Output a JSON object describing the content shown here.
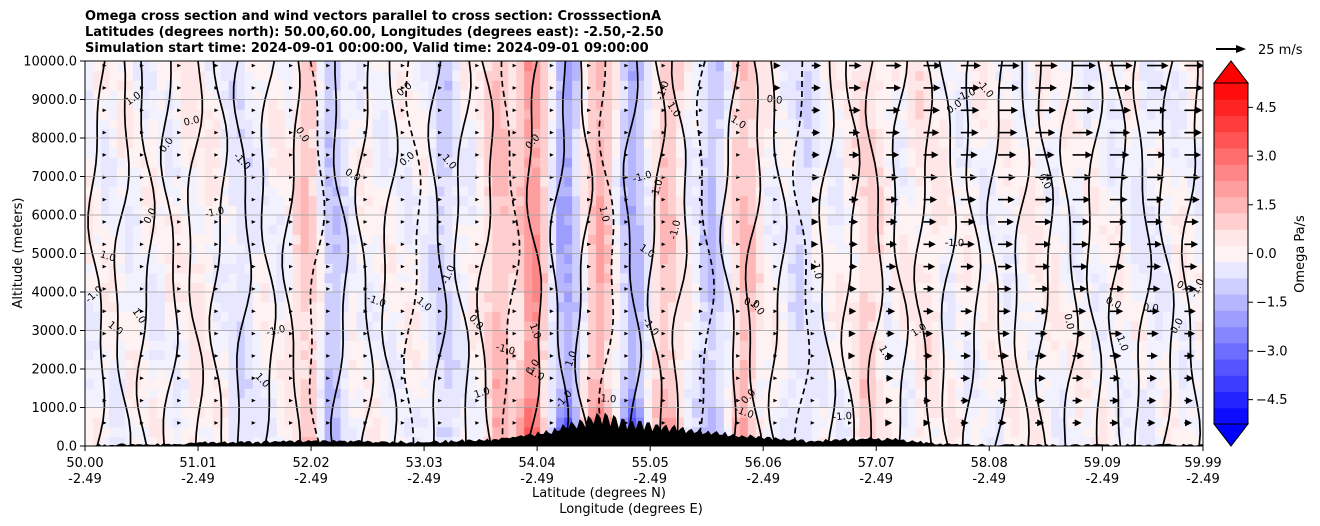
{
  "chart_data": {
    "type": "heatmap",
    "title_lines": [
      "Omega cross section and wind vectors parallel to cross section: CrosssectionA",
      "Latitudes (degrees north): 50.00,60.00, Longitudes (degrees east): -2.50,-2.50",
      "Simulation start time: 2024-09-01 00:00:00, Valid time: 2024-09-01 09:00:00"
    ],
    "xlabel_line1": "Latitude (degrees N)",
    "xlabel_line2": "Longitude (degrees E)",
    "ylabel": "Altitude (meters)",
    "x_range": [
      50.0,
      59.99
    ],
    "y_range": [
      0,
      10000
    ],
    "x_ticks": [
      {
        "lat": 50.0,
        "lat_label": "50.00",
        "lon_label": "-2.49"
      },
      {
        "lat": 51.01,
        "lat_label": "51.01",
        "lon_label": "-2.49"
      },
      {
        "lat": 52.02,
        "lat_label": "52.02",
        "lon_label": "-2.49"
      },
      {
        "lat": 53.03,
        "lat_label": "53.03",
        "lon_label": "-2.49"
      },
      {
        "lat": 54.04,
        "lat_label": "54.04",
        "lon_label": "-2.49"
      },
      {
        "lat": 55.05,
        "lat_label": "55.05",
        "lon_label": "-2.49"
      },
      {
        "lat": 56.06,
        "lat_label": "56.06",
        "lon_label": "-2.49"
      },
      {
        "lat": 57.07,
        "lat_label": "57.07",
        "lon_label": "-2.49"
      },
      {
        "lat": 58.08,
        "lat_label": "58.08",
        "lon_label": "-2.49"
      },
      {
        "lat": 59.09,
        "lat_label": "59.09",
        "lon_label": "-2.49"
      },
      {
        "lat": 59.99,
        "lat_label": "59.99",
        "lon_label": "-2.49"
      }
    ],
    "y_ticks": [
      {
        "value": 0,
        "label": "0.0"
      },
      {
        "value": 1000,
        "label": "1000.0"
      },
      {
        "value": 2000,
        "label": "2000.0"
      },
      {
        "value": 3000,
        "label": "3000.0"
      },
      {
        "value": 4000,
        "label": "4000.0"
      },
      {
        "value": 5000,
        "label": "5000.0"
      },
      {
        "value": 6000,
        "label": "6000.0"
      },
      {
        "value": 7000,
        "label": "7000.0"
      },
      {
        "value": 8000,
        "label": "8000.0"
      },
      {
        "value": 9000,
        "label": "9000.0"
      },
      {
        "value": 10000,
        "label": "10000.0"
      }
    ],
    "grid": "horizontal",
    "colorbar": {
      "label": "Omega Pa/s",
      "range": [
        -5.25,
        5.25
      ],
      "levels_step": 0.5,
      "ticks": [
        {
          "value": 4.5,
          "label": "4.5"
        },
        {
          "value": 3.0,
          "label": "3.0"
        },
        {
          "value": 1.5,
          "label": "1.5"
        },
        {
          "value": 0.0,
          "label": "0.0"
        },
        {
          "value": -1.5,
          "label": "−1.5"
        },
        {
          "value": -3.0,
          "label": "−3.0"
        },
        {
          "value": -4.5,
          "label": "−4.5"
        }
      ],
      "extend": "both",
      "color_positive": "#ff0000",
      "color_negative": "#0000ff"
    },
    "vector_key": {
      "label": "25 m/s",
      "speed": 25
    },
    "contour_levels": [
      -1.0,
      0.0,
      1.0
    ],
    "contour_labels": [
      "0.0",
      "-1.0",
      "1.0"
    ],
    "omega_bands": [
      {
        "lat": 51.0,
        "value": 0.3
      },
      {
        "lat": 51.4,
        "value": -0.6
      },
      {
        "lat": 52.0,
        "value": 1.2
      },
      {
        "lat": 52.2,
        "value": -1.3
      },
      {
        "lat": 53.2,
        "value": -0.9
      },
      {
        "lat": 53.7,
        "value": 1.4
      },
      {
        "lat": 54.0,
        "value": 2.2
      },
      {
        "lat": 54.3,
        "value": -1.8
      },
      {
        "lat": 54.6,
        "value": 1.6
      },
      {
        "lat": 54.9,
        "value": -1.6
      },
      {
        "lat": 55.2,
        "value": 1.2
      },
      {
        "lat": 55.6,
        "value": -1.2
      },
      {
        "lat": 55.9,
        "value": 1.3
      },
      {
        "lat": 56.4,
        "value": -0.7
      },
      {
        "lat": 57.0,
        "value": 0.9
      },
      {
        "lat": 57.5,
        "value": 0.4
      },
      {
        "lat": 58.5,
        "value": 0.2
      },
      {
        "lat": 59.5,
        "value": -0.3
      }
    ],
    "wind_profile": [
      {
        "lat": 50.0,
        "u": 0
      },
      {
        "lat": 51.0,
        "u": 3
      },
      {
        "lat": 52.0,
        "u": 5
      },
      {
        "lat": 53.0,
        "u": 4
      },
      {
        "lat": 54.0,
        "u": 2
      },
      {
        "lat": 55.0,
        "u": 2
      },
      {
        "lat": 56.0,
        "u": 4
      },
      {
        "lat": 57.0,
        "u": 12
      },
      {
        "lat": 58.0,
        "u": 18
      },
      {
        "lat": 59.0,
        "u": 20
      },
      {
        "lat": 59.99,
        "u": 16
      }
    ],
    "terrain": [
      {
        "lat": 50.0,
        "alt": 0
      },
      {
        "lat": 50.7,
        "alt": 20
      },
      {
        "lat": 51.2,
        "alt": 80
      },
      {
        "lat": 52.0,
        "alt": 120
      },
      {
        "lat": 53.0,
        "alt": 90
      },
      {
        "lat": 53.6,
        "alt": 150
      },
      {
        "lat": 54.1,
        "alt": 350
      },
      {
        "lat": 54.4,
        "alt": 650
      },
      {
        "lat": 54.6,
        "alt": 900
      },
      {
        "lat": 54.8,
        "alt": 700
      },
      {
        "lat": 55.3,
        "alt": 500
      },
      {
        "lat": 55.9,
        "alt": 250
      },
      {
        "lat": 56.5,
        "alt": 120
      },
      {
        "lat": 57.1,
        "alt": 200
      },
      {
        "lat": 57.6,
        "alt": 40
      },
      {
        "lat": 58.0,
        "alt": 0
      },
      {
        "lat": 59.99,
        "alt": 0
      }
    ]
  }
}
